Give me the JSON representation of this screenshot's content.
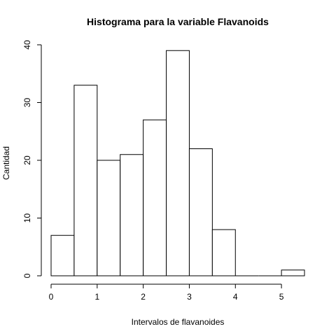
{
  "chart_data": {
    "type": "bar",
    "title": "Histograma para la variable Flavanoids",
    "xlabel": "Intervalos de flavanoides",
    "ylabel": "Cantidad",
    "bins": [
      {
        "start": 0.0,
        "end": 0.5,
        "count": 7
      },
      {
        "start": 0.5,
        "end": 1.0,
        "count": 33
      },
      {
        "start": 1.0,
        "end": 1.5,
        "count": 20
      },
      {
        "start": 1.5,
        "end": 2.0,
        "count": 21
      },
      {
        "start": 2.0,
        "end": 2.5,
        "count": 27
      },
      {
        "start": 2.5,
        "end": 3.0,
        "count": 39
      },
      {
        "start": 3.0,
        "end": 3.5,
        "count": 22
      },
      {
        "start": 3.5,
        "end": 4.0,
        "count": 8
      },
      {
        "start": 4.0,
        "end": 4.5,
        "count": 0
      },
      {
        "start": 4.5,
        "end": 5.0,
        "count": 0
      },
      {
        "start": 5.0,
        "end": 5.5,
        "count": 1
      }
    ],
    "xticks": [
      0,
      1,
      2,
      3,
      4,
      5
    ],
    "yticks": [
      0,
      10,
      20,
      30,
      40
    ],
    "xlim": [
      0,
      5.5
    ],
    "ylim": [
      0,
      40
    ],
    "grid": false,
    "colors": {
      "bar_fill": "#ffffff",
      "bar_stroke": "#000000"
    }
  }
}
